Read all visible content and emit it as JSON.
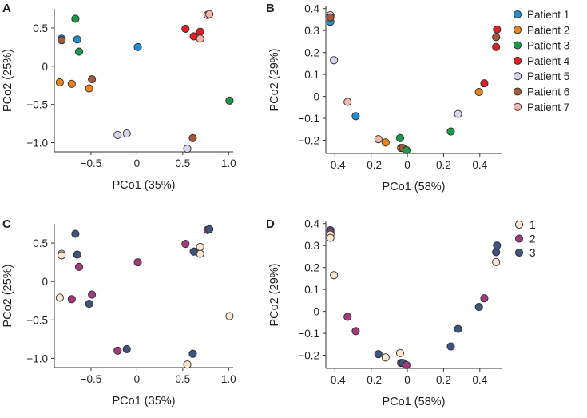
{
  "chart_data": [
    {
      "type": "scatter",
      "panel_label": "A",
      "xlabel": "PCo1 (35%)",
      "ylabel": "PCo2 (25%)",
      "xlim": [
        -0.9,
        1.05
      ],
      "ylim": [
        -1.12,
        0.75
      ],
      "xticks": [
        -0.5,
        0,
        0.5,
        1.0
      ],
      "xtick_labels": [
        "−0.5",
        "0",
        "0.5",
        "1.0"
      ],
      "yticks": [
        -1.0,
        -0.5,
        0,
        0.5
      ],
      "ytick_labels": [
        "−1.0",
        "−0.5",
        "0",
        "0.5"
      ],
      "grouping": "patient",
      "points": [
        {
          "x": -0.82,
          "y": 0.36,
          "group": "Patient 1"
        },
        {
          "x": -0.65,
          "y": 0.35,
          "group": "Patient 1"
        },
        {
          "x": 0.01,
          "y": 0.25,
          "group": "Patient 1"
        },
        {
          "x": -0.84,
          "y": -0.21,
          "group": "Patient 2"
        },
        {
          "x": -0.71,
          "y": -0.23,
          "group": "Patient 2"
        },
        {
          "x": -0.52,
          "y": -0.29,
          "group": "Patient 2"
        },
        {
          "x": -0.67,
          "y": 0.62,
          "group": "Patient 3"
        },
        {
          "x": -0.63,
          "y": 0.19,
          "group": "Patient 3"
        },
        {
          "x": 1.01,
          "y": -0.45,
          "group": "Patient 3"
        },
        {
          "x": 0.53,
          "y": 0.49,
          "group": "Patient 4"
        },
        {
          "x": 0.62,
          "y": 0.39,
          "group": "Patient 4"
        },
        {
          "x": 0.69,
          "y": 0.45,
          "group": "Patient 4"
        },
        {
          "x": -0.21,
          "y": -0.9,
          "group": "Patient 5"
        },
        {
          "x": -0.11,
          "y": -0.88,
          "group": "Patient 5"
        },
        {
          "x": 0.55,
          "y": -1.08,
          "group": "Patient 5"
        },
        {
          "x": -0.82,
          "y": 0.34,
          "group": "Patient 6"
        },
        {
          "x": -0.49,
          "y": -0.17,
          "group": "Patient 6"
        },
        {
          "x": 0.61,
          "y": -0.94,
          "group": "Patient 6"
        },
        {
          "x": 0.69,
          "y": 0.36,
          "group": "Patient 7"
        },
        {
          "x": 0.77,
          "y": 0.67,
          "group": "Patient 7"
        },
        {
          "x": 0.79,
          "y": 0.68,
          "group": "Patient 7"
        }
      ]
    },
    {
      "type": "scatter",
      "panel_label": "B",
      "xlabel": "PCo1 (58%)",
      "ylabel": "PCo2 (29%)",
      "xlim": [
        -0.45,
        0.52
      ],
      "ylim": [
        -0.26,
        0.41
      ],
      "xticks": [
        -0.4,
        -0.2,
        0,
        0.2,
        0.4
      ],
      "xtick_labels": [
        "−0.4",
        "−0.2",
        "0",
        "0.2",
        "0.4"
      ],
      "yticks": [
        -0.2,
        -0.1,
        0,
        0.1,
        0.2,
        0.3,
        0.4
      ],
      "ytick_labels": [
        "−0.2",
        "−0.1",
        "0",
        "0.1",
        "0.2",
        "0.3",
        "0.4"
      ],
      "grouping": "patient",
      "points": [
        {
          "x": -0.425,
          "y": 0.37,
          "group": "Patient 5"
        },
        {
          "x": -0.425,
          "y": 0.34,
          "group": "Patient 1"
        },
        {
          "x": -0.425,
          "y": 0.36,
          "group": "Patient 6"
        },
        {
          "x": -0.405,
          "y": 0.165,
          "group": "Patient 5"
        },
        {
          "x": -0.33,
          "y": -0.025,
          "group": "Patient 7"
        },
        {
          "x": -0.285,
          "y": -0.09,
          "group": "Patient 1"
        },
        {
          "x": -0.16,
          "y": -0.195,
          "group": "Patient 7"
        },
        {
          "x": -0.12,
          "y": -0.21,
          "group": "Patient 2"
        },
        {
          "x": -0.04,
          "y": -0.19,
          "group": "Patient 3"
        },
        {
          "x": -0.035,
          "y": -0.235,
          "group": "Patient 2"
        },
        {
          "x": -0.025,
          "y": -0.235,
          "group": "Patient 6"
        },
        {
          "x": -0.005,
          "y": -0.245,
          "group": "Patient 3"
        },
        {
          "x": 0.24,
          "y": -0.16,
          "group": "Patient 3"
        },
        {
          "x": 0.28,
          "y": -0.08,
          "group": "Patient 5"
        },
        {
          "x": 0.395,
          "y": 0.02,
          "group": "Patient 2"
        },
        {
          "x": 0.425,
          "y": 0.06,
          "group": "Patient 4"
        },
        {
          "x": 0.49,
          "y": 0.225,
          "group": "Patient 4"
        },
        {
          "x": 0.49,
          "y": 0.27,
          "group": "Patient 6"
        },
        {
          "x": 0.495,
          "y": 0.305,
          "group": "Patient 4"
        }
      ],
      "legend": {
        "placement": "right",
        "entries": [
          "Patient 1",
          "Patient 2",
          "Patient 3",
          "Patient 4",
          "Patient 5",
          "Patient 6",
          "Patient 7"
        ]
      }
    },
    {
      "type": "scatter",
      "panel_label": "C",
      "xlabel": "PCo1 (35%)",
      "ylabel": "PCo2 (25%)",
      "xlim": [
        -0.9,
        1.05
      ],
      "ylim": [
        -1.12,
        0.75
      ],
      "xticks": [
        -0.5,
        0,
        0.5,
        1.0
      ],
      "xtick_labels": [
        "−0.5",
        "0",
        "0.5",
        "1.0"
      ],
      "yticks": [
        -1.0,
        -0.5,
        0,
        0.5
      ],
      "ytick_labels": [
        "−1.0",
        "−0.5",
        "0",
        "0.5"
      ],
      "grouping": "time",
      "points": [
        {
          "x": -0.82,
          "y": 0.36,
          "group": "1"
        },
        {
          "x": -0.82,
          "y": 0.34,
          "group": "1"
        },
        {
          "x": -0.84,
          "y": -0.21,
          "group": "1"
        },
        {
          "x": 0.69,
          "y": 0.36,
          "group": "1"
        },
        {
          "x": 0.69,
          "y": 0.45,
          "group": "1"
        },
        {
          "x": 1.01,
          "y": -0.45,
          "group": "1"
        },
        {
          "x": 0.55,
          "y": -1.08,
          "group": "1"
        },
        {
          "x": -0.63,
          "y": 0.19,
          "group": "2"
        },
        {
          "x": -0.71,
          "y": -0.23,
          "group": "2"
        },
        {
          "x": -0.49,
          "y": -0.17,
          "group": "2"
        },
        {
          "x": 0.01,
          "y": 0.25,
          "group": "2"
        },
        {
          "x": -0.21,
          "y": -0.9,
          "group": "2"
        },
        {
          "x": 0.53,
          "y": 0.49,
          "group": "2"
        },
        {
          "x": 0.77,
          "y": 0.67,
          "group": "2"
        },
        {
          "x": -0.67,
          "y": 0.62,
          "group": "3"
        },
        {
          "x": -0.65,
          "y": 0.35,
          "group": "3"
        },
        {
          "x": -0.52,
          "y": -0.29,
          "group": "3"
        },
        {
          "x": -0.11,
          "y": -0.88,
          "group": "3"
        },
        {
          "x": 0.62,
          "y": 0.39,
          "group": "3"
        },
        {
          "x": 0.79,
          "y": 0.68,
          "group": "3"
        },
        {
          "x": 0.61,
          "y": -0.94,
          "group": "3"
        }
      ]
    },
    {
      "type": "scatter",
      "panel_label": "D",
      "xlabel": "PCo1 (58%)",
      "ylabel": "PCo2 (29%)",
      "xlim": [
        -0.45,
        0.52
      ],
      "ylim": [
        -0.26,
        0.41
      ],
      "xticks": [
        -0.4,
        -0.2,
        0,
        0.2,
        0.4
      ],
      "xtick_labels": [
        "−0.4",
        "−0.2",
        "0",
        "0.2",
        "0.4"
      ],
      "yticks": [
        -0.2,
        -0.1,
        0,
        0.1,
        0.2,
        0.3,
        0.4
      ],
      "ytick_labels": [
        "−0.2",
        "−0.1",
        "0",
        "0.1",
        "0.2",
        "0.3",
        "0.4"
      ],
      "grouping": "time",
      "points": [
        {
          "x": -0.425,
          "y": 0.37,
          "group": "3"
        },
        {
          "x": -0.425,
          "y": 0.36,
          "group": "2"
        },
        {
          "x": -0.425,
          "y": 0.35,
          "group": "1"
        },
        {
          "x": -0.425,
          "y": 0.335,
          "group": "1"
        },
        {
          "x": -0.405,
          "y": 0.165,
          "group": "1"
        },
        {
          "x": -0.33,
          "y": -0.025,
          "group": "2"
        },
        {
          "x": -0.285,
          "y": -0.09,
          "group": "2"
        },
        {
          "x": -0.16,
          "y": -0.195,
          "group": "3"
        },
        {
          "x": -0.12,
          "y": -0.21,
          "group": "1"
        },
        {
          "x": -0.04,
          "y": -0.19,
          "group": "1"
        },
        {
          "x": -0.035,
          "y": -0.235,
          "group": "2"
        },
        {
          "x": -0.025,
          "y": -0.235,
          "group": "3"
        },
        {
          "x": -0.005,
          "y": -0.245,
          "group": "2"
        },
        {
          "x": 0.24,
          "y": -0.16,
          "group": "3"
        },
        {
          "x": 0.28,
          "y": -0.08,
          "group": "3"
        },
        {
          "x": 0.395,
          "y": 0.02,
          "group": "3"
        },
        {
          "x": 0.425,
          "y": 0.06,
          "group": "2"
        },
        {
          "x": 0.49,
          "y": 0.225,
          "group": "1"
        },
        {
          "x": 0.49,
          "y": 0.27,
          "group": "3"
        },
        {
          "x": 0.495,
          "y": 0.3,
          "group": "3"
        }
      ],
      "legend": {
        "placement": "right",
        "entries": [
          "1",
          "2",
          "3"
        ]
      }
    }
  ],
  "colors": {
    "Patient 1": "#1e8fcf",
    "Patient 2": "#ea8418",
    "Patient 3": "#1b9a48",
    "Patient 4": "#e11f26",
    "Patient 5": "#d7d5ec",
    "Patient 6": "#a3583a",
    "Patient 7": "#f4b6ac",
    "1": "#fbe6cf",
    "2": "#a43a7e",
    "3": "#3f5580"
  }
}
